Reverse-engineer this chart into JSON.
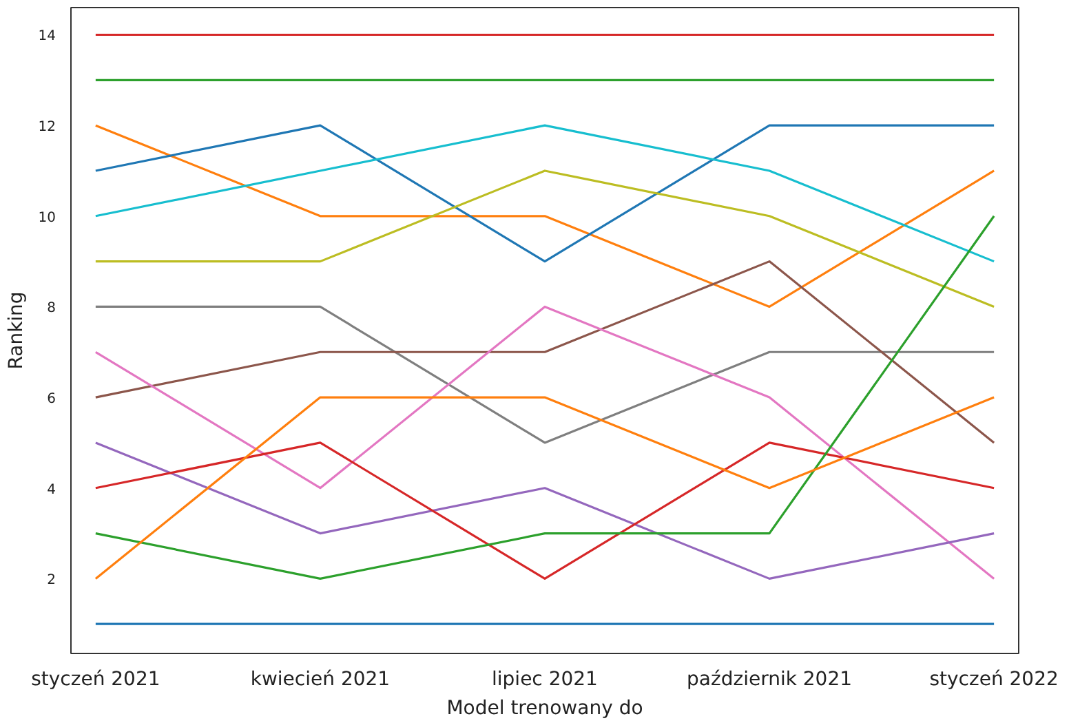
{
  "chart_data": {
    "type": "line",
    "xlabel": "Model trenowany do",
    "ylabel": "Ranking",
    "categories": [
      "styczeń 2021",
      "kwiecień 2021",
      "lipiec 2021",
      "październik 2021",
      "styczeń 2022"
    ],
    "ylim": [
      0.35,
      14.6
    ],
    "yticks": [
      2,
      4,
      6,
      8,
      10,
      12,
      14
    ],
    "grid": false,
    "marker": "none",
    "line_style": "solid",
    "series": [
      {
        "color": "#d62728",
        "values": [
          14,
          14,
          14,
          14,
          14
        ]
      },
      {
        "color": "#2ca02c",
        "values": [
          13,
          13,
          13,
          13,
          13
        ]
      },
      {
        "color": "#ff7f0e",
        "values": [
          12,
          10,
          10,
          8,
          11
        ]
      },
      {
        "color": "#1f77b4",
        "values": [
          11,
          12,
          9,
          12,
          12
        ]
      },
      {
        "color": "#17becf",
        "values": [
          10,
          11,
          12,
          11,
          9
        ]
      },
      {
        "color": "#bcbd22",
        "values": [
          9,
          9,
          11,
          10,
          8
        ]
      },
      {
        "color": "#7f7f7f",
        "values": [
          8,
          8,
          5,
          7,
          7
        ]
      },
      {
        "color": "#8c564b",
        "values": [
          6,
          7,
          7,
          9,
          5
        ]
      },
      {
        "color": "#e377c2",
        "values": [
          7,
          4,
          8,
          6,
          2
        ]
      },
      {
        "color": "#9467bd",
        "values": [
          5,
          3,
          4,
          2,
          3
        ]
      },
      {
        "color": "#d62728",
        "values": [
          4,
          5,
          2,
          5,
          4
        ]
      },
      {
        "color": "#2ca02c",
        "values": [
          3,
          2,
          3,
          3,
          10
        ]
      },
      {
        "color": "#ff7f0e",
        "values": [
          2,
          6,
          6,
          4,
          6
        ]
      },
      {
        "color": "#1f77b4",
        "values": [
          1,
          1,
          1,
          1,
          1
        ]
      }
    ]
  }
}
